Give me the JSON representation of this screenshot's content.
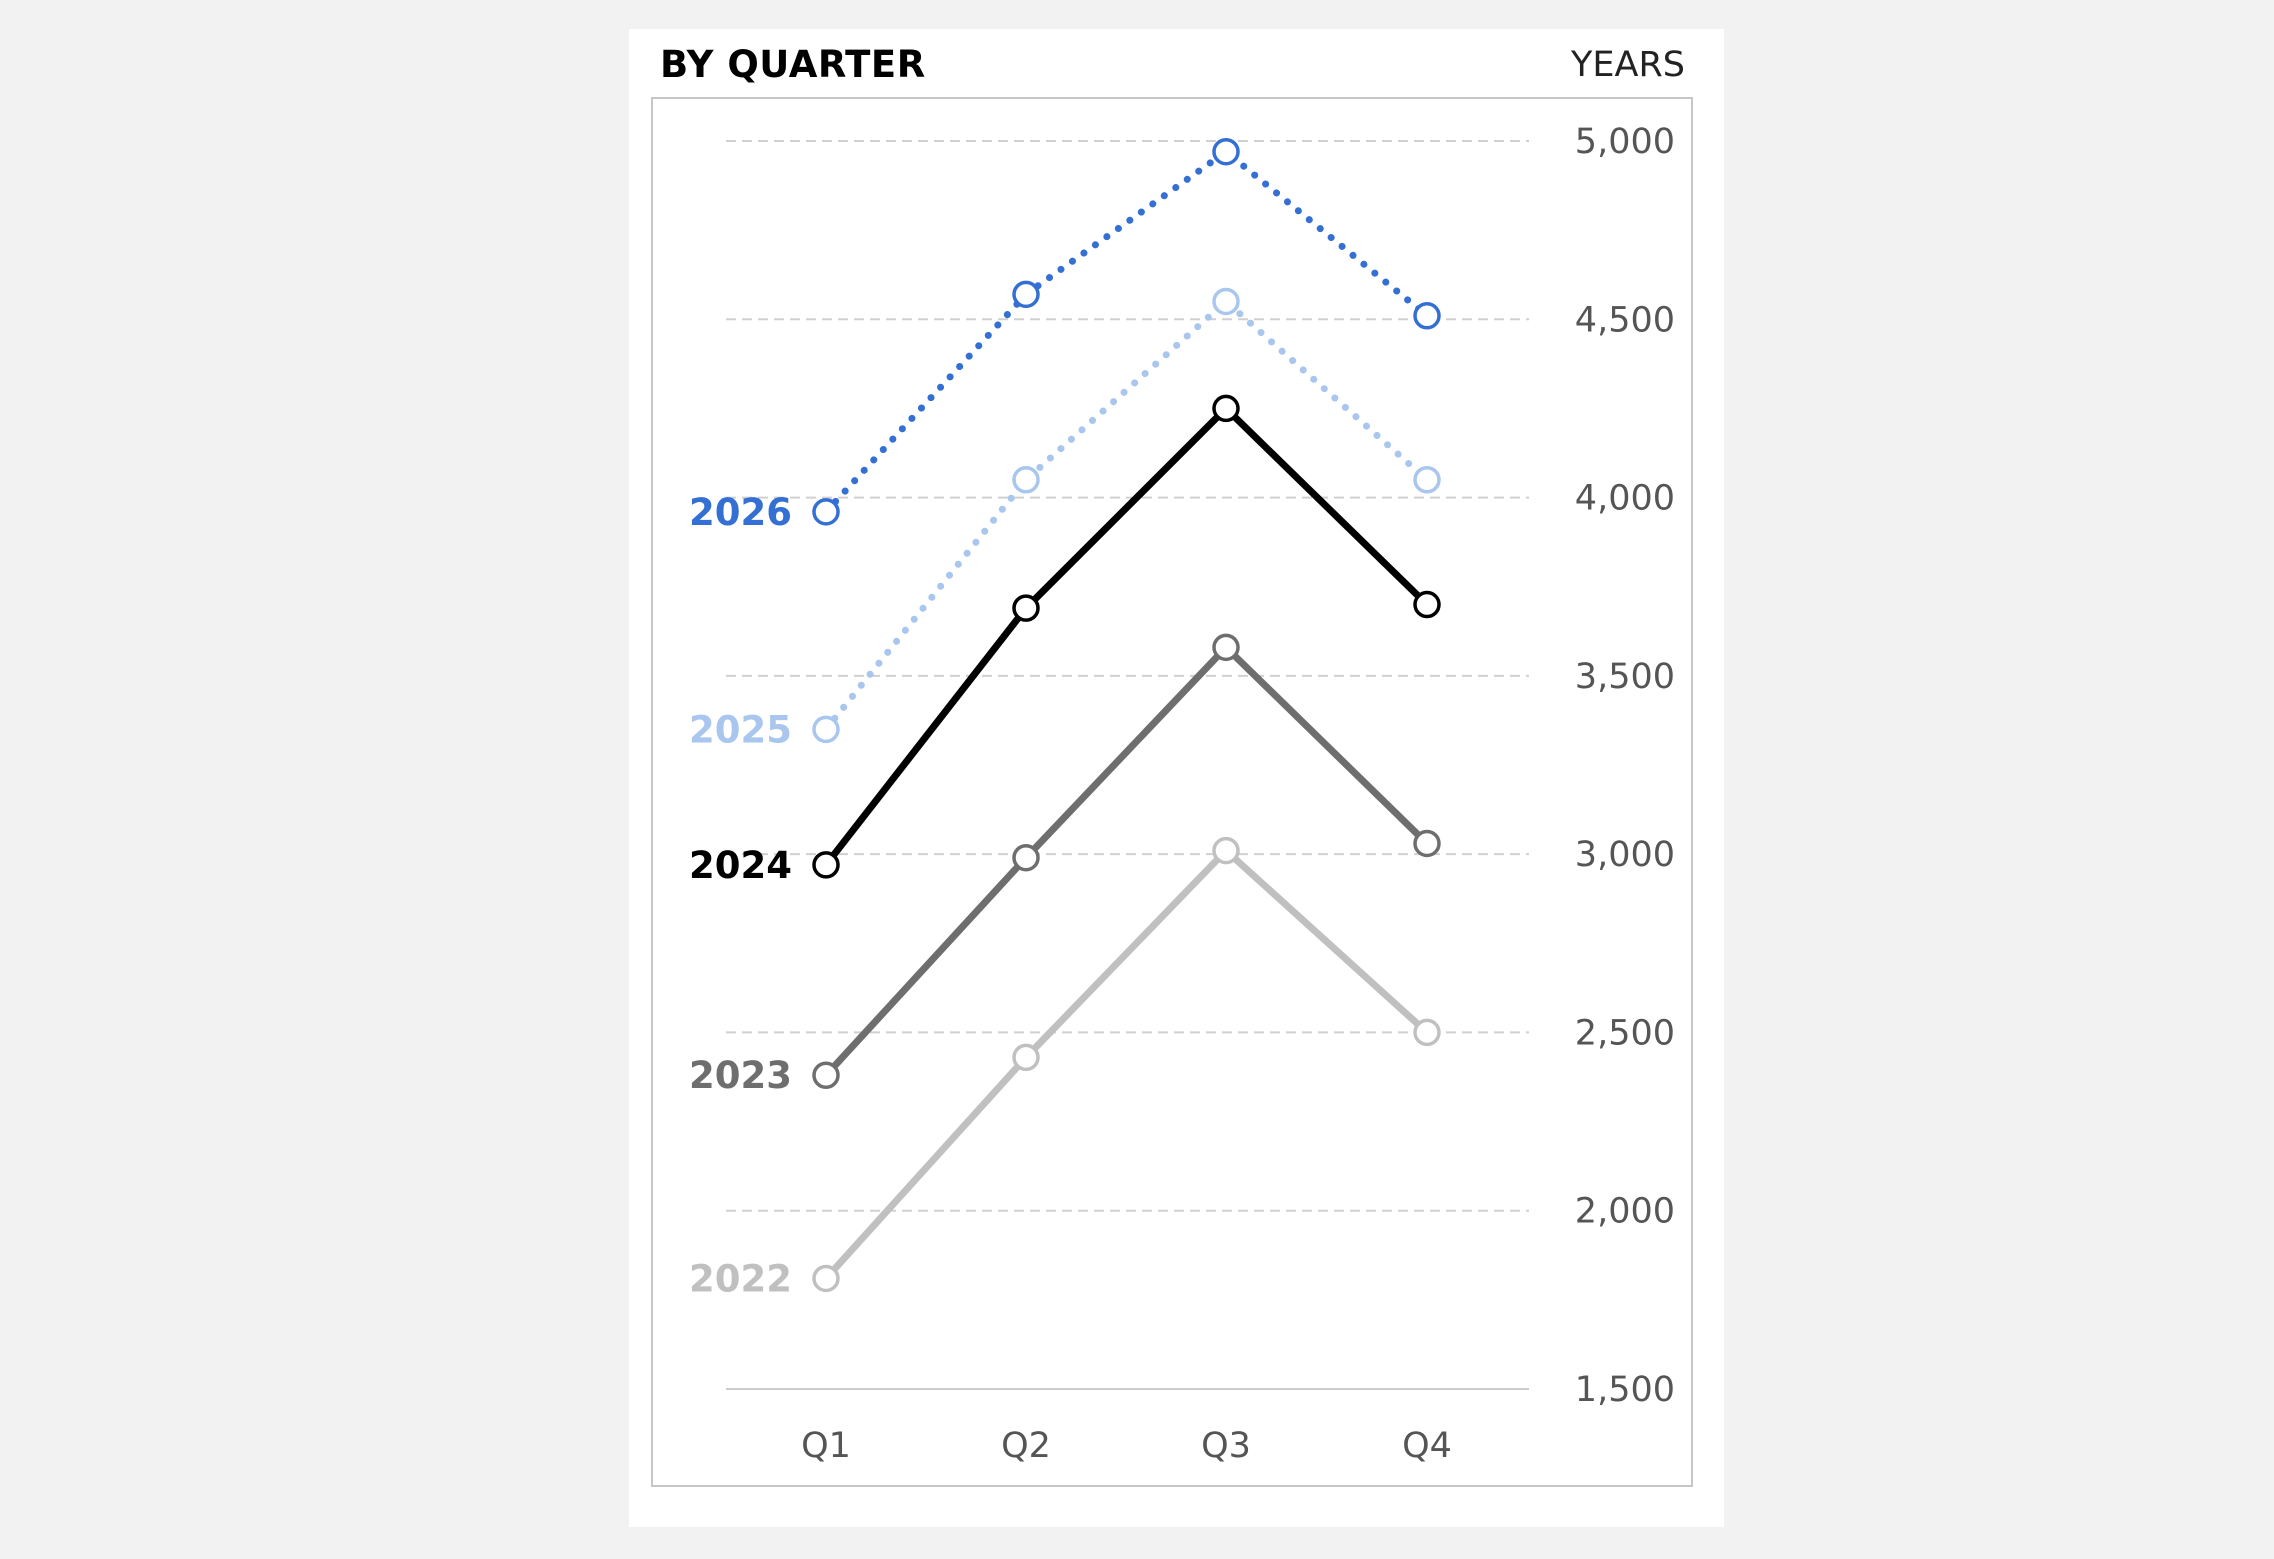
{
  "chart_data": {
    "type": "line",
    "title": "BY QUARTER",
    "ylabel": "YEARS",
    "categories": [
      "Q1",
      "Q2",
      "Q3",
      "Q4"
    ],
    "ylim": [
      1500,
      5000
    ],
    "yticks": [
      5000,
      4500,
      4000,
      3500,
      3000,
      2500,
      2000,
      1500
    ],
    "ytick_labels": [
      "5,000",
      "4,500",
      "4,000",
      "3,500",
      "3,000",
      "2,500",
      "2,000",
      "1,500"
    ],
    "grid": true,
    "legend": "direct-labels-left",
    "series": [
      {
        "name": "2022",
        "values": [
          1810,
          2430,
          3010,
          2500
        ],
        "color": "#c0c0c0",
        "style": "solid"
      },
      {
        "name": "2023",
        "values": [
          2380,
          2990,
          3580,
          3030
        ],
        "color": "#6e6e6e",
        "style": "solid"
      },
      {
        "name": "2024",
        "values": [
          2970,
          3690,
          4250,
          3700
        ],
        "color": "#000000",
        "style": "solid"
      },
      {
        "name": "2025",
        "values": [
          3350,
          4050,
          4550,
          4050
        ],
        "color": "#a9c6ef",
        "style": "dotted"
      },
      {
        "name": "2026",
        "values": [
          3960,
          4570,
          4970,
          4510
        ],
        "color": "#3470d4",
        "style": "dotted"
      }
    ]
  }
}
